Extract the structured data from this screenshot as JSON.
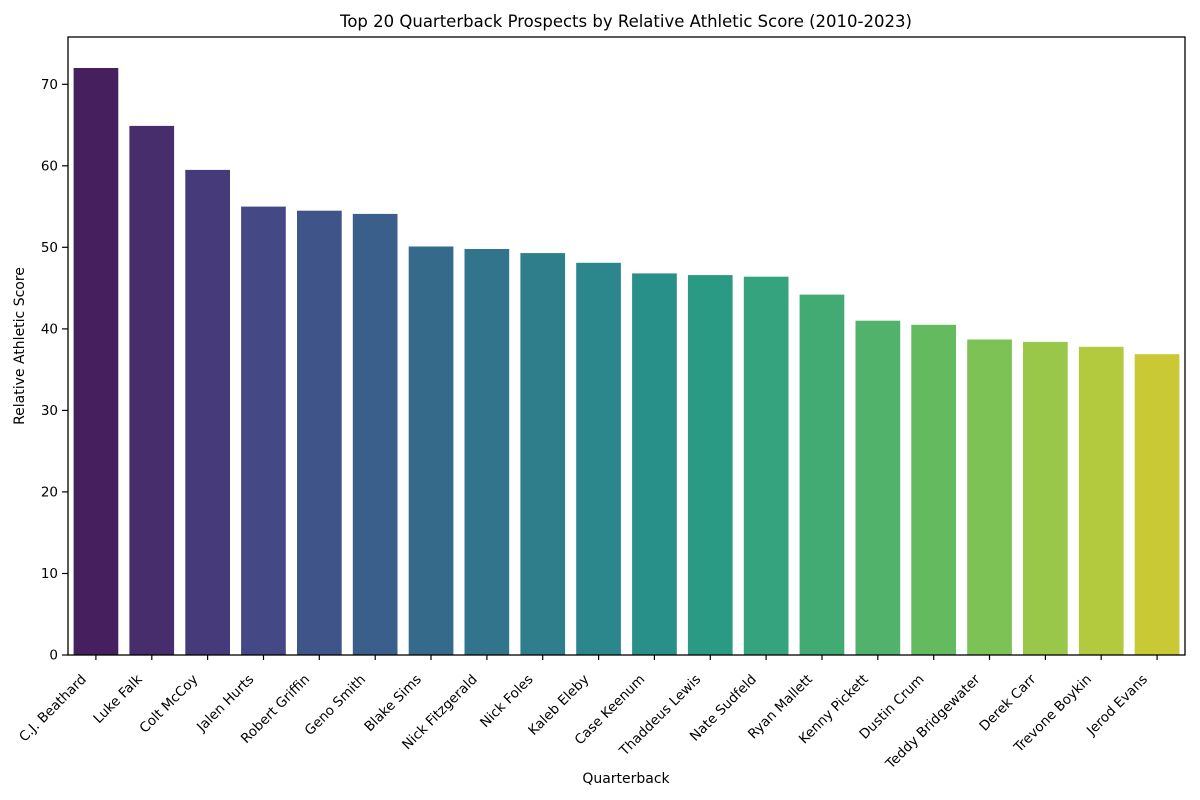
{
  "title": "Top 20 Quarterback Prospects by Relative Athletic Score (2010-2023)",
  "chart_data": {
    "type": "bar",
    "title": "Top 20 Quarterback Prospects by Relative Athletic Score (2010-2023)",
    "xlabel": "Quarterback",
    "ylabel": "Relative Athletic Score",
    "categories": [
      "C.J. Beathard",
      "Luke Falk",
      "Colt McCoy",
      "Jalen Hurts",
      "Robert Griffin",
      "Geno Smith",
      "Blake Sims",
      "Nick Fitzgerald",
      "Nick Foles",
      "Kaleb Eleby",
      "Case Keenum",
      "Thaddeus Lewis",
      "Nate Sudfeld",
      "Ryan Mallett",
      "Kenny Pickett",
      "Dustin Crum",
      "Teddy Bridgewater",
      "Derek Carr",
      "Trevone Boykin",
      "Jerod Evans"
    ],
    "values": [
      72.0,
      64.9,
      59.5,
      55.0,
      54.5,
      54.1,
      50.1,
      49.8,
      49.3,
      48.1,
      46.8,
      46.6,
      46.4,
      44.2,
      41.0,
      40.5,
      38.7,
      38.4,
      37.8,
      36.9
    ],
    "bar_colors": [
      "#46205e",
      "#472d6c",
      "#463a7a",
      "#444884",
      "#3f5488",
      "#3a5f8a",
      "#366a8b",
      "#32748b",
      "#2e7e8b",
      "#2b878b",
      "#299089",
      "#2a9a85",
      "#35a37e",
      "#42ab74",
      "#50b26b",
      "#63ba5f",
      "#7cc254",
      "#99c74a",
      "#b3c93e",
      "#c9c935"
    ],
    "ylim": [
      0,
      75.8
    ],
    "yticks": [
      0,
      10,
      20,
      30,
      40,
      50,
      60,
      70
    ],
    "x_tick_rotation": 45,
    "grid": false,
    "legend": null,
    "axis_color": "#000000",
    "background_color": "#ffffff"
  }
}
